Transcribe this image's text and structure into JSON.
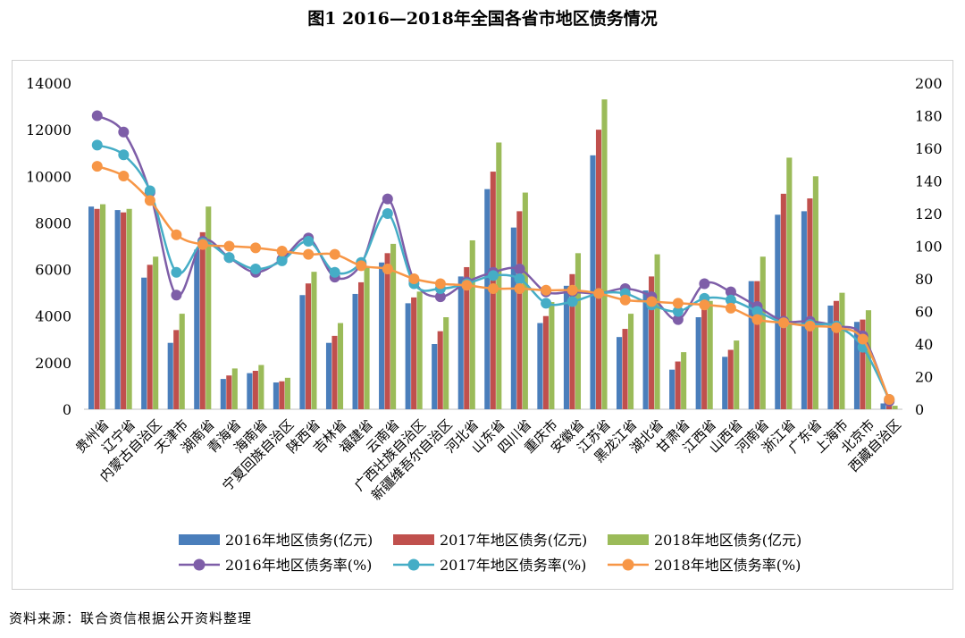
{
  "title": "图1 2016—2018年全国各省市地区债务情况",
  "source": "资料来源：联合资信根据公开资料整理",
  "colors": {
    "debt2016": "#4a7ebb",
    "debt2017": "#c0504d",
    "debt2018": "#9bbb59",
    "rate2016": "#7e5ea8",
    "rate2017": "#45adc6",
    "rate2018": "#f79646"
  },
  "chart_data": {
    "type": "bar",
    "combo": "bar+line",
    "categories": [
      "贵州省",
      "辽宁省",
      "内蒙古自治区",
      "天津市",
      "湖南省",
      "青海省",
      "海南省",
      "宁夏回族自治区",
      "陕西省",
      "吉林省",
      "福建省",
      "云南省",
      "广西壮族自治区",
      "新疆维吾尔自治区",
      "河北省",
      "山东省",
      "四川省",
      "重庆市",
      "安徽省",
      "江苏省",
      "黑龙江省",
      "湖北省",
      "甘肃省",
      "江西省",
      "山西省",
      "河南省",
      "浙江省",
      "广东省",
      "上海市",
      "北京市",
      "西藏自治区"
    ],
    "series": [
      {
        "name": "2016年地区债务(亿元)",
        "type": "bar",
        "axis": "left",
        "values": [
          8700,
          8550,
          5650,
          2850,
          6850,
          1300,
          1550,
          1150,
          4900,
          2850,
          4950,
          6300,
          4550,
          2800,
          5700,
          9450,
          7800,
          3700,
          5300,
          10900,
          3100,
          5100,
          1700,
          3950,
          2250,
          5500,
          8350,
          8500,
          4450,
          3750,
          250
        ]
      },
      {
        "name": "2017年地区债务(亿元)",
        "type": "bar",
        "axis": "left",
        "values": [
          8600,
          8450,
          6200,
          3400,
          7600,
          1450,
          1650,
          1200,
          5400,
          3150,
          5450,
          6700,
          4800,
          3350,
          6100,
          10200,
          8500,
          4000,
          5800,
          12000,
          3450,
          5700,
          2050,
          4300,
          2550,
          5500,
          9250,
          9050,
          4650,
          3850,
          150
        ]
      },
      {
        "name": "2018年地区债务(亿元)",
        "type": "bar",
        "axis": "left",
        "values": [
          8800,
          8600,
          6550,
          4100,
          8700,
          1750,
          1900,
          1350,
          5900,
          3700,
          6100,
          7100,
          5050,
          3950,
          7250,
          11450,
          9300,
          4600,
          6700,
          13300,
          4100,
          6650,
          2450,
          4650,
          2950,
          6550,
          10800,
          10000,
          5000,
          4250,
          150
        ]
      },
      {
        "name": "2016年地区债务率(%)",
        "type": "line",
        "axis": "right",
        "values": [
          180,
          170,
          133,
          70,
          103,
          93,
          84,
          92,
          105,
          81,
          89,
          129,
          79,
          69,
          78,
          84,
          86,
          72,
          72,
          71,
          74,
          69,
          55,
          77,
          72,
          63,
          54,
          54,
          51,
          45,
          5
        ]
      },
      {
        "name": "2017年地区债务率(%)",
        "type": "line",
        "axis": "right",
        "values": [
          162,
          156,
          134,
          84,
          102,
          93,
          86,
          91,
          103,
          84,
          90,
          120,
          77,
          74,
          77,
          82,
          80,
          65,
          66,
          71,
          71,
          64,
          60,
          68,
          67,
          60,
          53,
          52,
          51,
          38,
          6
        ]
      },
      {
        "name": "2018年地区债务率(%)",
        "type": "line",
        "axis": "right",
        "values": [
          149,
          143,
          128,
          107,
          101,
          100,
          99,
          97,
          95,
          95,
          88,
          86,
          80,
          77,
          76,
          74,
          74,
          73,
          73,
          71,
          67,
          66,
          65,
          64,
          62,
          55,
          53,
          51,
          50,
          43,
          6
        ]
      }
    ],
    "yleft": {
      "min": 0,
      "max": 14000,
      "ticks": [
        "0",
        "2000",
        "4000",
        "6000",
        "8000",
        "10000",
        "12000",
        "14000"
      ]
    },
    "yright": {
      "min": 0,
      "max": 200,
      "ticks": [
        "0",
        "20",
        "40",
        "60",
        "80",
        "100",
        "120",
        "140",
        "160",
        "180",
        "200"
      ]
    },
    "grid": false,
    "legend_position": "bottom"
  }
}
